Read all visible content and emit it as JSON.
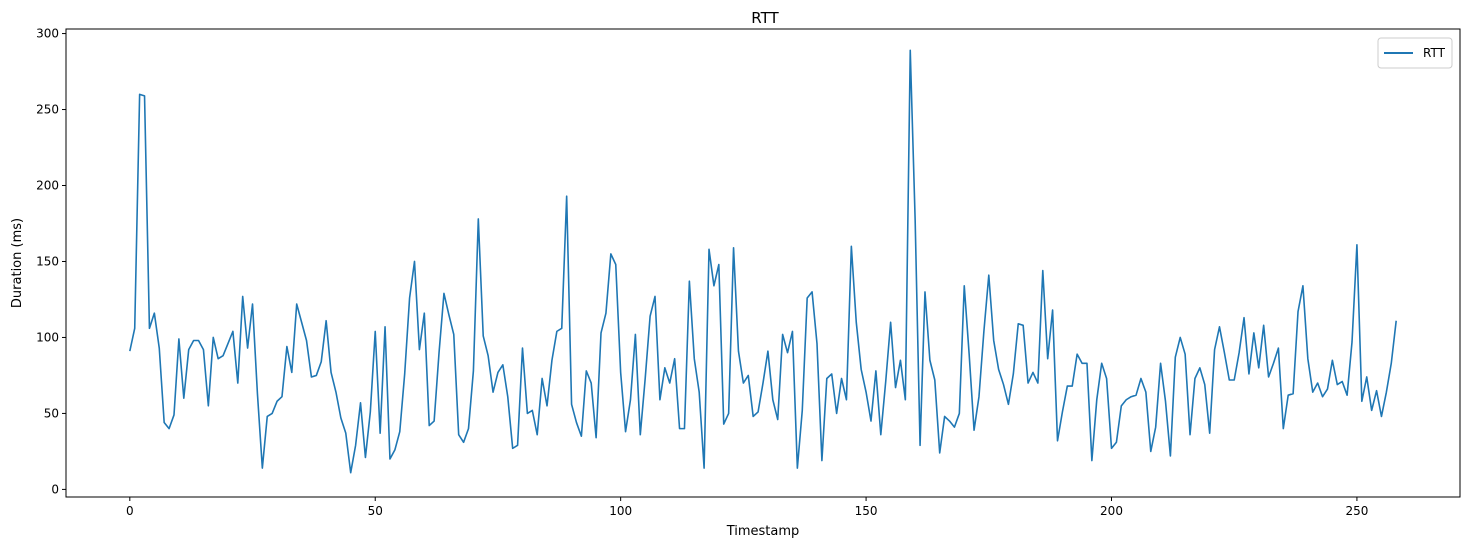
{
  "chart_data": {
    "type": "line",
    "title": "RTT",
    "xlabel": "Timestamp",
    "ylabel": "Duration (ms)",
    "xlim": [
      -13,
      271
    ],
    "ylim": [
      -5,
      303
    ],
    "xticks": [
      0,
      50,
      100,
      150,
      200,
      250
    ],
    "yticks": [
      0,
      50,
      100,
      150,
      200,
      250,
      300
    ],
    "grid": false,
    "legend_position": "top-right",
    "series": [
      {
        "name": "RTT",
        "color": "#1f77b4",
        "values": [
          91,
          106,
          260,
          259,
          106,
          116,
          93,
          44,
          40,
          49,
          99,
          60,
          92,
          98,
          98,
          92,
          55,
          100,
          86,
          88,
          96,
          104,
          70,
          127,
          93,
          122,
          63,
          14,
          48,
          50,
          58,
          61,
          94,
          77,
          122,
          110,
          98,
          74,
          75,
          84,
          111,
          77,
          64,
          47,
          37,
          11,
          29,
          57,
          21,
          51,
          104,
          37,
          107,
          20,
          26,
          38,
          76,
          126,
          150,
          92,
          116,
          42,
          45,
          90,
          129,
          115,
          102,
          36,
          31,
          40,
          78,
          178,
          101,
          88,
          64,
          77,
          82,
          61,
          27,
          29,
          93,
          50,
          52,
          36,
          73,
          55,
          85,
          104,
          106,
          193,
          56,
          44,
          35,
          78,
          70,
          34,
          103,
          116,
          155,
          148,
          77,
          38,
          59,
          102,
          36,
          73,
          114,
          127,
          59,
          80,
          70,
          86,
          40,
          40,
          137,
          86,
          64,
          14,
          158,
          134,
          148,
          43,
          50,
          159,
          91,
          70,
          75,
          48,
          51,
          70,
          91,
          59,
          46,
          102,
          90,
          104,
          14,
          52,
          126,
          130,
          96,
          19,
          73,
          76,
          50,
          73,
          59,
          160,
          110,
          79,
          64,
          45,
          78,
          36,
          71,
          110,
          67,
          85,
          59,
          289,
          177,
          29,
          130,
          85,
          72,
          24,
          48,
          45,
          41,
          50,
          134,
          89,
          39,
          61,
          104,
          141,
          98,
          79,
          69,
          56,
          76,
          109,
          108,
          70,
          77,
          70,
          144,
          86,
          118,
          32,
          51,
          68,
          68,
          89,
          83,
          83,
          19,
          59,
          83,
          73,
          27,
          31,
          55,
          59,
          61,
          62,
          73,
          64,
          25,
          41,
          83,
          58,
          22,
          87,
          100,
          89,
          36,
          73,
          80,
          69,
          37,
          92,
          107,
          90,
          72,
          72,
          90,
          113,
          76,
          103,
          80,
          108,
          74,
          83,
          93,
          40,
          62,
          63,
          117,
          134,
          86,
          64,
          70,
          61,
          66,
          85,
          69,
          71,
          62,
          97,
          161,
          58,
          74,
          52,
          65,
          48,
          64,
          83,
          111
        ]
      }
    ]
  }
}
